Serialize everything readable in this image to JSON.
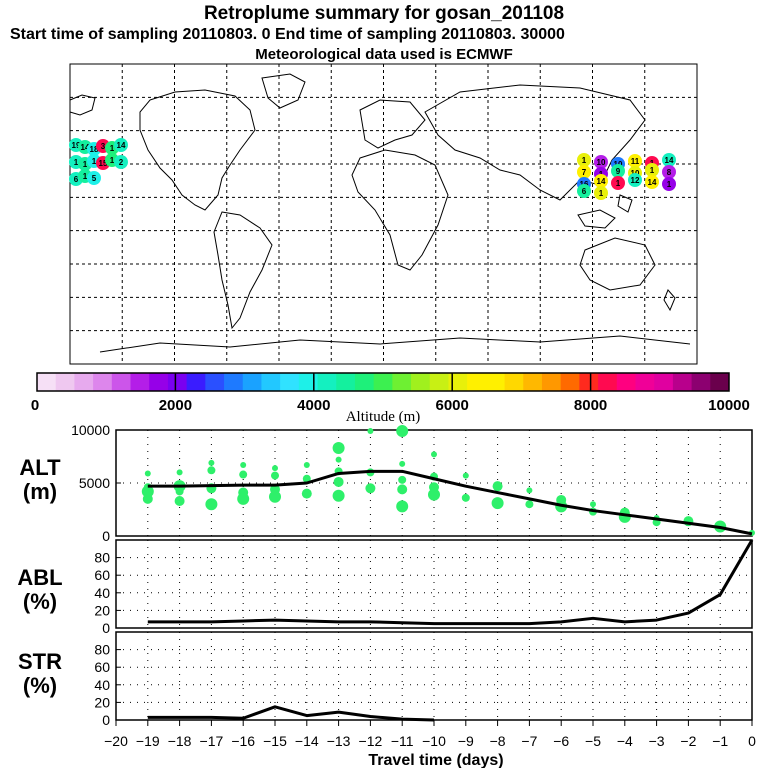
{
  "header": {
    "title": "Retroplume summary for gosan_201108",
    "subtitle": "Start time of sampling 20110803.    0     End time of sampling 20110803. 30000",
    "subtitle2": "Meteorological data used is ECMWF"
  },
  "colorbar": {
    "label": "Altitude (m)",
    "ticks": [
      "0",
      "2000",
      "4000",
      "6000",
      "8000",
      "10000"
    ],
    "colors": [
      "#f6e0f6",
      "#efc8f0",
      "#e7aaee",
      "#dd86ec",
      "#cc55ea",
      "#b41ee8",
      "#9600e8",
      "#7a00f0",
      "#3a1cff",
      "#2a50ff",
      "#1e7aff",
      "#1aa2ff",
      "#22c8ff",
      "#30e2ff",
      "#1ef0e8",
      "#14f0c0",
      "#14f09e",
      "#1ef07a",
      "#3cf050",
      "#6ef032",
      "#a0f01e",
      "#c8f014",
      "#e8f00a",
      "#fff000",
      "#fff000",
      "#ffd800",
      "#ffb800",
      "#ff9800",
      "#ff6a00",
      "#ff2a1e",
      "#ff0a50",
      "#ff0080",
      "#f00098",
      "#e000a0",
      "#b8008c",
      "#8c0070",
      "#6a004c"
    ]
  },
  "map": {
    "markers_west": [
      "19",
      "14",
      "18",
      "3",
      "1",
      "14",
      "1",
      "1",
      "1",
      "15",
      "1",
      "2",
      "6",
      "1",
      "5"
    ],
    "markers_east": [
      "1",
      "10",
      "10",
      "11",
      "1",
      "14",
      "7",
      "1",
      "9",
      "10",
      "1",
      "8",
      "16",
      "14",
      "1",
      "12",
      "14",
      "1",
      "6",
      "1"
    ]
  },
  "panels": {
    "alt": {
      "label1": "ALT",
      "label2": "(m)"
    },
    "abl": {
      "label1": "ABL",
      "label2": "(%)"
    },
    "str": {
      "label1": "STR",
      "label2": "(%)"
    }
  },
  "chart_data": [
    {
      "type": "line",
      "title": "ALT (m)",
      "xlim": [
        -20,
        0
      ],
      "ylim": [
        0,
        10000
      ],
      "yticks": [
        0,
        5000,
        10000
      ],
      "x": [
        -19,
        -18,
        -17,
        -16,
        -15,
        -14,
        -13,
        -12,
        -11,
        -10,
        -9,
        -8,
        -7,
        -6,
        -5,
        -4,
        -3,
        -2,
        -1,
        0
      ],
      "values": [
        4700,
        4700,
        4750,
        4800,
        4800,
        5000,
        5900,
        6100,
        6100,
        5400,
        4700,
        4100,
        3500,
        2900,
        2400,
        2000,
        1600,
        1200,
        800,
        200
      ],
      "scatter": {
        "color": "#2ef06a",
        "points": [
          [
            -19,
            5900
          ],
          [
            -19,
            4600
          ],
          [
            -19,
            3500
          ],
          [
            -19,
            4200
          ],
          [
            -18,
            6000
          ],
          [
            -18,
            4200
          ],
          [
            -18,
            3300
          ],
          [
            -18,
            4700
          ],
          [
            -17,
            6900
          ],
          [
            -17,
            6200
          ],
          [
            -17,
            4500
          ],
          [
            -17,
            3000
          ],
          [
            -16,
            6700
          ],
          [
            -16,
            5800
          ],
          [
            -16,
            4100
          ],
          [
            -16,
            3500
          ],
          [
            -15,
            6400
          ],
          [
            -15,
            5700
          ],
          [
            -15,
            4400
          ],
          [
            -15,
            3700
          ],
          [
            -14,
            6700
          ],
          [
            -14,
            5400
          ],
          [
            -14,
            4000
          ],
          [
            -13,
            8300
          ],
          [
            -13,
            7200
          ],
          [
            -13,
            6100
          ],
          [
            -13,
            5100
          ],
          [
            -13,
            3800
          ],
          [
            -12,
            9900
          ],
          [
            -12,
            6000
          ],
          [
            -12,
            4500
          ],
          [
            -11,
            9900
          ],
          [
            -11,
            6800
          ],
          [
            -11,
            5300
          ],
          [
            -11,
            4400
          ],
          [
            -11,
            2800
          ],
          [
            -10,
            7700
          ],
          [
            -10,
            5600
          ],
          [
            -10,
            4600
          ],
          [
            -10,
            3900
          ],
          [
            -9,
            5700
          ],
          [
            -9,
            3600
          ],
          [
            -8,
            4700
          ],
          [
            -8,
            3100
          ],
          [
            -7,
            4300
          ],
          [
            -7,
            3000
          ],
          [
            -6,
            3400
          ],
          [
            -6,
            2800
          ],
          [
            -5,
            3000
          ],
          [
            -5,
            2300
          ],
          [
            -4,
            2200
          ],
          [
            -4,
            1800
          ],
          [
            -3,
            1700
          ],
          [
            -3,
            1300
          ],
          [
            -2,
            1400
          ],
          [
            -1,
            900
          ],
          [
            0,
            300
          ]
        ]
      }
    },
    {
      "type": "line",
      "title": "ABL (%)",
      "xlim": [
        -20,
        0
      ],
      "ylim": [
        0,
        100
      ],
      "yticks": [
        0,
        20,
        40,
        60,
        80
      ],
      "x": [
        -19,
        -18,
        -17,
        -16,
        -15,
        -14,
        -13,
        -12,
        -11,
        -10,
        -9,
        -8,
        -7,
        -6,
        -5,
        -4,
        -3,
        -2,
        -1,
        0
      ],
      "values": [
        7,
        7,
        7,
        8,
        9,
        8,
        7,
        7,
        6,
        5,
        5,
        5,
        5,
        7,
        11,
        7,
        9,
        17,
        38,
        100
      ]
    },
    {
      "type": "line",
      "title": "STR (%)",
      "xlim": [
        -20,
        0
      ],
      "ylim": [
        0,
        100
      ],
      "yticks": [
        0,
        20,
        40,
        60,
        80
      ],
      "x": [
        -19,
        -18,
        -17,
        -16,
        -15,
        -14,
        -13,
        -12,
        -11,
        -10
      ],
      "values": [
        3,
        3,
        3,
        2,
        15,
        5,
        9,
        4,
        1,
        0
      ],
      "xticks": [
        "−20",
        "−19",
        "−18",
        "−17",
        "−16",
        "−15",
        "−14",
        "−13",
        "−12",
        "−11",
        "−10",
        "−9",
        "−8",
        "−7",
        "−6",
        "−5",
        "−4",
        "−3",
        "−2",
        "−1",
        "0"
      ],
      "xlabel": "Travel time (days)"
    }
  ]
}
